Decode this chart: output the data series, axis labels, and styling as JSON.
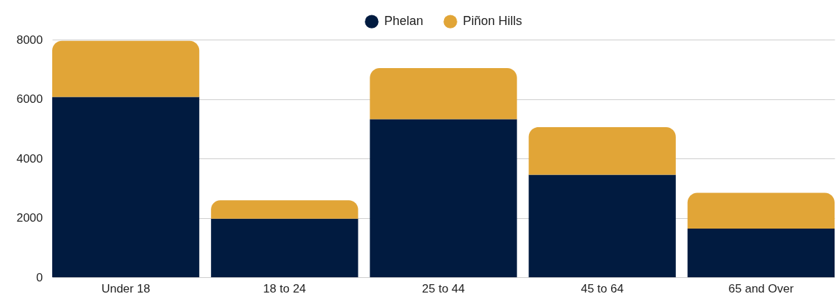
{
  "chart_data": {
    "type": "bar",
    "categories": [
      "Under 18",
      "18 to 24",
      "25 to 44",
      "45 to 64",
      "65 and Over"
    ],
    "series": [
      {
        "name": "Phelan",
        "color": "#011b40",
        "values": [
          6070,
          1970,
          5320,
          3450,
          1640
        ]
      },
      {
        "name": "Piñon Hills",
        "color": "#e1a537",
        "values": [
          1890,
          620,
          1720,
          1600,
          1200
        ]
      }
    ],
    "stacked": true,
    "ylim": [
      0,
      8000
    ],
    "yticks": [
      0,
      2000,
      4000,
      6000,
      8000
    ],
    "grid": "y",
    "legend": "top"
  }
}
